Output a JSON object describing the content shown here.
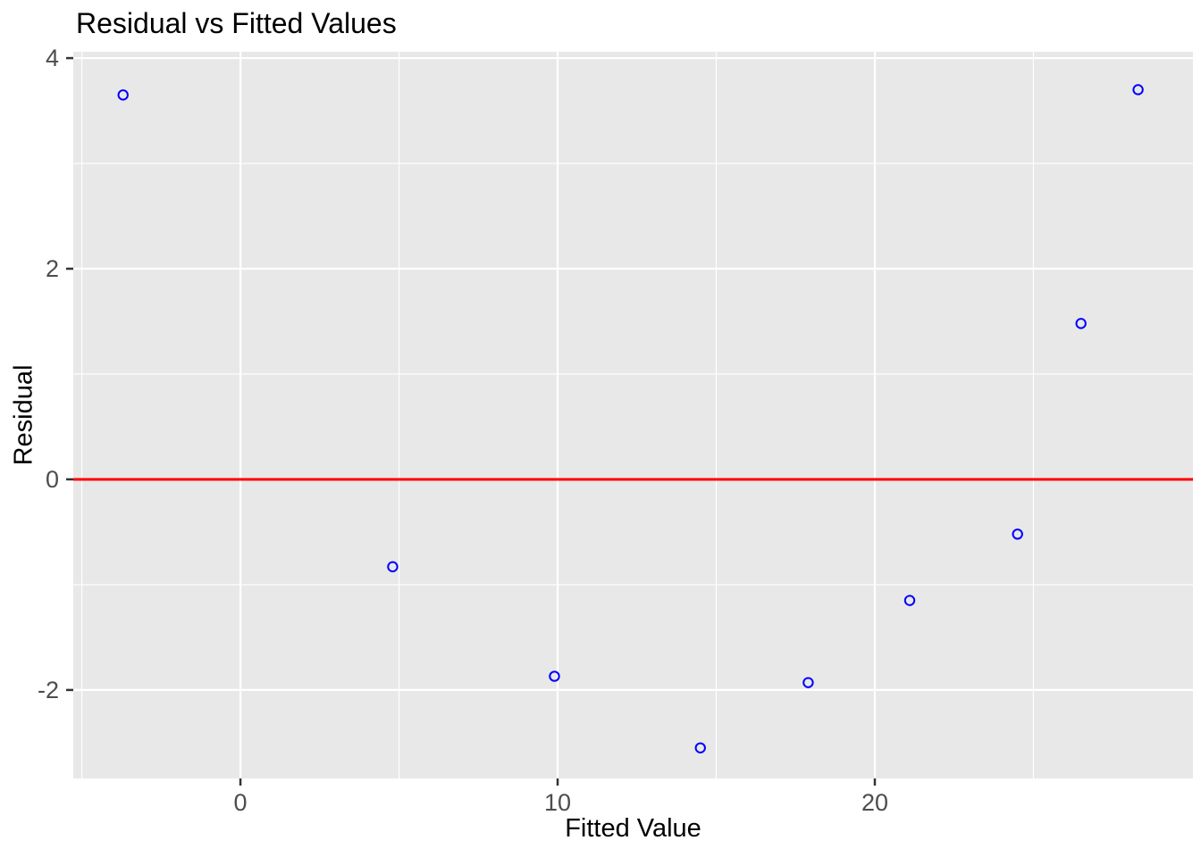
{
  "chart_data": {
    "type": "scatter",
    "title": "Residual vs Fitted Values",
    "xlabel": "Fitted Value",
    "ylabel": "Residual",
    "points": [
      {
        "x": -3.7,
        "y": 3.65
      },
      {
        "x": 4.8,
        "y": -0.83
      },
      {
        "x": 9.9,
        "y": -1.87
      },
      {
        "x": 14.5,
        "y": -2.55
      },
      {
        "x": 17.9,
        "y": -1.93
      },
      {
        "x": 21.1,
        "y": -1.15
      },
      {
        "x": 24.5,
        "y": -0.52
      },
      {
        "x": 26.5,
        "y": 1.48
      },
      {
        "x": 28.3,
        "y": 3.7
      }
    ],
    "reference_line": {
      "y": 0
    },
    "xlim": [
      -5.27,
      30.03
    ],
    "ylim": [
      -2.84,
      4.06
    ],
    "x_ticks": [
      0,
      10,
      20
    ],
    "y_ticks": [
      -2,
      0,
      2,
      4
    ],
    "x_minor_ticks": [
      -5,
      5,
      15,
      25
    ],
    "y_minor_ticks": [
      -1,
      1,
      3
    ],
    "grid": true,
    "legend": "none",
    "style": {
      "point_color": "#0000FF",
      "reference_line_color": "#FF0000",
      "panel_bg": "#E8E8E8",
      "grid_color": "#FFFFFF",
      "tick_mark_color": "#333333",
      "tick_label_color": "#4D4D4D",
      "title_color": "#000000"
    }
  }
}
